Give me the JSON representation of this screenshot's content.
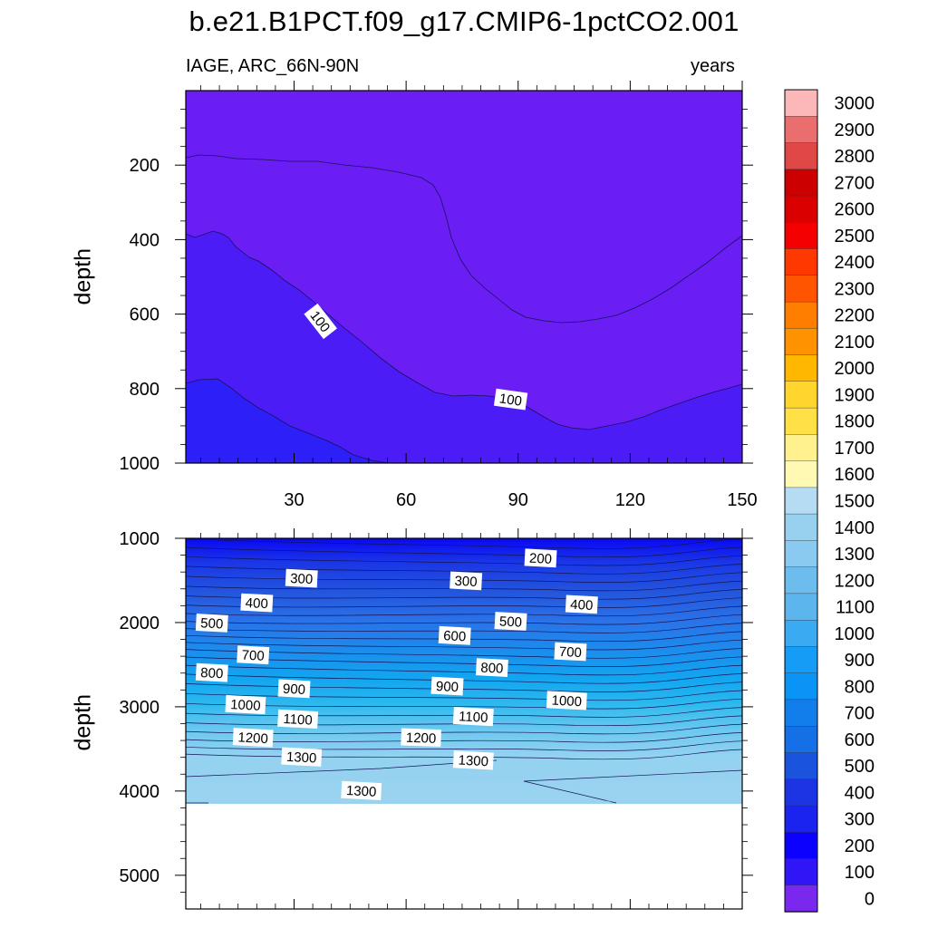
{
  "title": "b.e21.B1PCT.f09_g17.CMIP6-1pctCO2.001",
  "top_panel": {
    "left_label": "IAGE, ARC_66N-90N",
    "right_label": "years",
    "y_label": "depth",
    "y_ticks": [
      "200",
      "400",
      "600",
      "800",
      "1000"
    ],
    "x_ticks": [
      "30",
      "60",
      "90",
      "120",
      "150"
    ]
  },
  "bottom_panel": {
    "y_label": "depth",
    "y_ticks": [
      "1000",
      "2000",
      "3000",
      "4000",
      "5000"
    ]
  },
  "colorbar_labels": [
    "3000",
    "2900",
    "2800",
    "2700",
    "2600",
    "2500",
    "2400",
    "2300",
    "2200",
    "2100",
    "2000",
    "1900",
    "1800",
    "1700",
    "1600",
    "1500",
    "1400",
    "1300",
    "1200",
    "1100",
    "1000",
    "900",
    "800",
    "700",
    "600",
    "500",
    "400",
    "300",
    "200",
    "100",
    "0"
  ],
  "colors": {
    "top_fill_0_100": "#6a1ef4",
    "top_fill_100_200": "#4b1cf6",
    "top_fill_200_300": "#2d1ff8"
  },
  "chart_data": [
    {
      "type": "heatmap",
      "subtype": "contour",
      "x_range": [
        1,
        150
      ],
      "y_range": [
        0,
        1000
      ],
      "y_reversed": true,
      "contour_labels": [
        {
          "text": "100",
          "x": 37,
          "y": 620
        },
        {
          "text": "100",
          "x": 88,
          "y": 830
        }
      ]
    },
    {
      "type": "heatmap",
      "subtype": "contour",
      "x_range": [
        1,
        150
      ],
      "y_range": [
        1000,
        5400
      ],
      "y_reversed": true,
      "data_bottom_depth": 4120,
      "contour_labels": [
        {
          "text": "200",
          "x": 96,
          "y": 1240
        },
        {
          "text": "300",
          "x": 32,
          "y": 1480
        },
        {
          "text": "300",
          "x": 76,
          "y": 1510
        },
        {
          "text": "400",
          "x": 20,
          "y": 1770
        },
        {
          "text": "400",
          "x": 107,
          "y": 1790
        },
        {
          "text": "500",
          "x": 8,
          "y": 2010
        },
        {
          "text": "500",
          "x": 88,
          "y": 1990
        },
        {
          "text": "600",
          "x": 73,
          "y": 2160
        },
        {
          "text": "700",
          "x": 19,
          "y": 2390
        },
        {
          "text": "700",
          "x": 104,
          "y": 2350
        },
        {
          "text": "800",
          "x": 8,
          "y": 2600
        },
        {
          "text": "800",
          "x": 83,
          "y": 2540
        },
        {
          "text": "900",
          "x": 30,
          "y": 2790
        },
        {
          "text": "900",
          "x": 71,
          "y": 2760
        },
        {
          "text": "1000",
          "x": 17,
          "y": 2980
        },
        {
          "text": "1000",
          "x": 103,
          "y": 2930
        },
        {
          "text": "1100",
          "x": 31,
          "y": 3150
        },
        {
          "text": "1100",
          "x": 78,
          "y": 3120
        },
        {
          "text": "1200",
          "x": 19,
          "y": 3370
        },
        {
          "text": "1200",
          "x": 64,
          "y": 3370
        },
        {
          "text": "1300",
          "x": 32,
          "y": 3600
        },
        {
          "text": "1300",
          "x": 78,
          "y": 3640
        },
        {
          "text": "1300",
          "x": 48,
          "y": 4000
        }
      ]
    }
  ]
}
